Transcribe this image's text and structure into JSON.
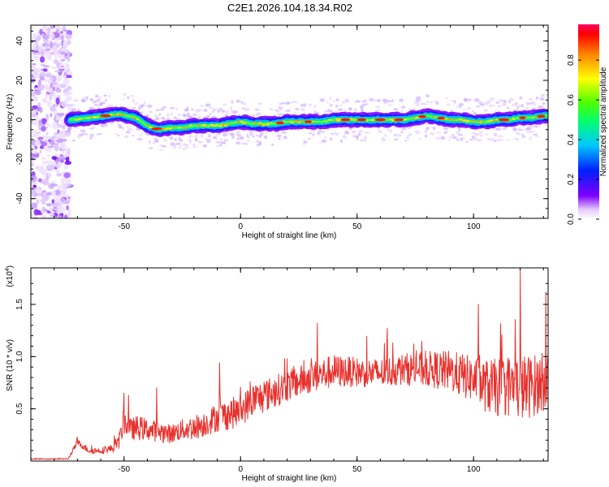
{
  "title": "C2E1.2026.104.18.34.R02",
  "chart_data": [
    {
      "type": "heatmap",
      "name": "spectrogram",
      "xlabel": "Height of straight line (km)",
      "ylabel": "Frequency (Hz)",
      "xlim": [
        -90,
        132
      ],
      "ylim": [
        -50,
        48
      ],
      "xticks": [
        -50,
        0,
        50,
        100
      ],
      "yticks": [
        -40,
        -20,
        0,
        20,
        40
      ],
      "xtick_labels": [
        "-50",
        "0",
        "50",
        "100"
      ],
      "ytick_labels": [
        "-40",
        "-20",
        "0",
        "20",
        "40"
      ],
      "noise_band_x": [
        -90,
        -73
      ],
      "ridge": {
        "x": [
          -73,
          -65,
          -58,
          -52,
          -45,
          -40,
          -35,
          -30,
          -25,
          -20,
          -15,
          -10,
          -5,
          0,
          5,
          10,
          15,
          20,
          25,
          30,
          35,
          40,
          45,
          50,
          55,
          60,
          65,
          70,
          75,
          80,
          85,
          90,
          95,
          100,
          105,
          110,
          115,
          120,
          125,
          130
        ],
        "y": [
          0,
          1,
          2,
          3,
          1,
          -3,
          -5,
          -4,
          -4,
          -3,
          -3,
          -3,
          -2,
          -1,
          -2,
          -2,
          -2,
          -1,
          -1,
          -1,
          -1,
          0,
          0,
          0,
          0,
          0,
          0,
          0,
          1,
          2,
          1,
          0,
          0,
          -1,
          -1,
          0,
          0,
          1,
          1,
          2
        ]
      },
      "hotspots_x": [
        -58,
        -36,
        17,
        29,
        45,
        52,
        60,
        68,
        78,
        86,
        113,
        121,
        129
      ]
    },
    {
      "type": "line",
      "name": "snr",
      "xlabel": "Height of straight line (km)",
      "ylabel": "SNR (10 * v/v)",
      "scale_label": "(x10",
      "scale_exponent": "4",
      "scale_suffix": ")",
      "xlim": [
        -90,
        132
      ],
      "ylim": [
        0,
        1.85
      ],
      "xticks": [
        -50,
        0,
        50,
        100
      ],
      "yticks": [
        0.5,
        1.0,
        1.5
      ],
      "xtick_labels": [
        "-50",
        "0",
        "50",
        "100"
      ],
      "ytick_labels": [
        "0.5",
        "1.0",
        "1.5"
      ],
      "line_color": "#e8302c",
      "envelope": {
        "x": [
          -90,
          -74,
          -72,
          -70,
          -65,
          -60,
          -55,
          -52,
          -50,
          -47,
          -44,
          -40,
          -35,
          -30,
          -25,
          -20,
          -15,
          -10,
          -5,
          0,
          5,
          10,
          20,
          30,
          40,
          50,
          60,
          70,
          80,
          90,
          100,
          105,
          110,
          115,
          120,
          125,
          130,
          132
        ],
        "mean": [
          0.02,
          0.02,
          0.1,
          0.18,
          0.1,
          0.1,
          0.12,
          0.2,
          0.38,
          0.3,
          0.32,
          0.3,
          0.28,
          0.26,
          0.3,
          0.32,
          0.36,
          0.42,
          0.45,
          0.48,
          0.58,
          0.62,
          0.72,
          0.8,
          0.86,
          0.85,
          0.84,
          0.88,
          0.88,
          0.86,
          0.78,
          0.72,
          0.7,
          0.72,
          0.7,
          0.72,
          0.76,
          0.8
        ],
        "spread": [
          0.005,
          0.005,
          0.02,
          0.03,
          0.03,
          0.03,
          0.04,
          0.08,
          0.12,
          0.1,
          0.12,
          0.1,
          0.1,
          0.09,
          0.1,
          0.12,
          0.12,
          0.14,
          0.15,
          0.15,
          0.16,
          0.16,
          0.15,
          0.15,
          0.16,
          0.14,
          0.14,
          0.15,
          0.17,
          0.2,
          0.22,
          0.25,
          0.28,
          0.3,
          0.32,
          0.3,
          0.28,
          0.25
        ]
      },
      "peaks": [
        {
          "x": -70,
          "y": 0.22
        },
        {
          "x": -50,
          "y": 0.65
        },
        {
          "x": -48,
          "y": 0.63
        },
        {
          "x": -36,
          "y": 0.7
        },
        {
          "x": -9,
          "y": 0.94
        },
        {
          "x": 20,
          "y": 0.98
        },
        {
          "x": 33,
          "y": 1.32
        },
        {
          "x": 63,
          "y": 1.27
        },
        {
          "x": 102,
          "y": 1.5
        },
        {
          "x": 120,
          "y": 1.84
        },
        {
          "x": 131,
          "y": 1.62
        }
      ]
    }
  ],
  "colorbar": {
    "label": "Normalized spectral amplitude",
    "ticks": [
      0.0,
      0.2,
      0.4,
      0.6,
      0.8
    ],
    "tick_labels": [
      "0.0",
      "0.2",
      "0.4",
      "0.6",
      "0.8"
    ],
    "range": [
      0,
      0.98
    ]
  }
}
